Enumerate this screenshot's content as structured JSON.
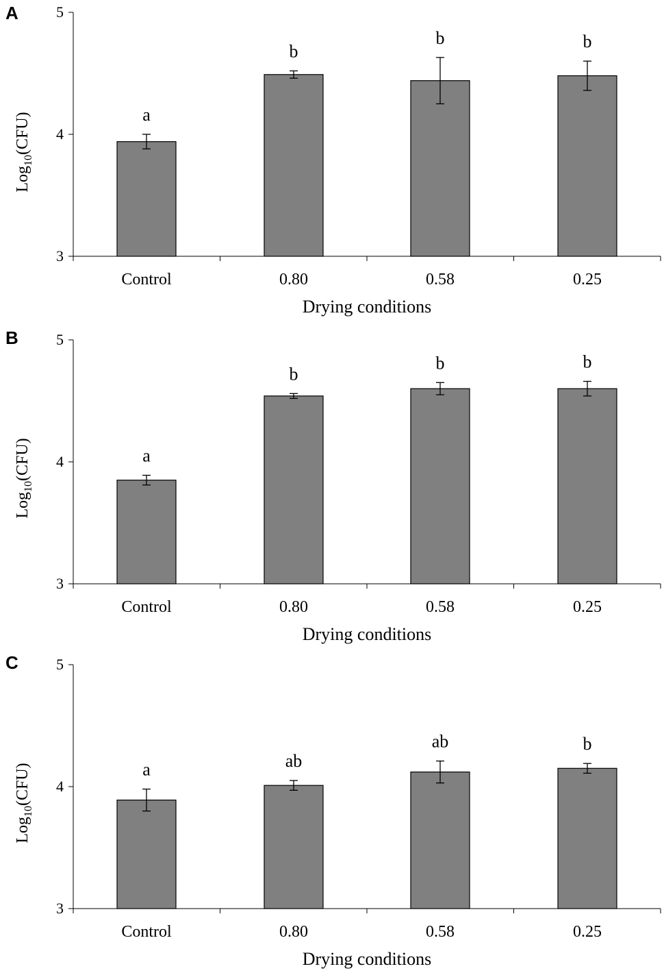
{
  "figure": {
    "x_axis_label": "Drying conditions"
  },
  "chart_data": [
    {
      "type": "bar",
      "panel": "A",
      "title": "",
      "xlabel": "Drying conditions",
      "ylabel": {
        "base": "Log",
        "subscript": "10",
        "rest": "(CFU)"
      },
      "ylim": [
        3,
        5
      ],
      "yticks": [
        "3",
        "4",
        "5"
      ],
      "categories": [
        "Control",
        "0.80",
        "0.58",
        "0.25"
      ],
      "values": [
        3.94,
        4.49,
        4.44,
        4.48
      ],
      "errors": [
        0.06,
        0.03,
        0.19,
        0.12
      ],
      "significance": [
        "a",
        "b",
        "b",
        "b"
      ],
      "bar_color": "#808080"
    },
    {
      "type": "bar",
      "panel": "B",
      "title": "",
      "xlabel": "Drying conditions",
      "ylabel": {
        "base": "Log",
        "subscript": "10",
        "rest": "(CFU)"
      },
      "ylim": [
        3,
        5
      ],
      "yticks": [
        "3",
        "4",
        "5"
      ],
      "categories": [
        "Control",
        "0.80",
        "0.58",
        "0.25"
      ],
      "values": [
        3.85,
        4.54,
        4.6,
        4.6
      ],
      "errors": [
        0.04,
        0.02,
        0.05,
        0.06
      ],
      "significance": [
        "a",
        "b",
        "b",
        "b"
      ],
      "bar_color": "#808080"
    },
    {
      "type": "bar",
      "panel": "C",
      "title": "",
      "xlabel": "Drying conditions",
      "ylabel": {
        "base": "Log",
        "subscript": "10",
        "rest": "(CFU)"
      },
      "ylim": [
        3,
        5
      ],
      "yticks": [
        "3",
        "4",
        "5"
      ],
      "categories": [
        "Control",
        "0.80",
        "0.58",
        "0.25"
      ],
      "values": [
        3.89,
        4.01,
        4.12,
        4.15
      ],
      "errors": [
        0.09,
        0.04,
        0.09,
        0.04
      ],
      "significance": [
        "a",
        "ab",
        "ab",
        "b"
      ],
      "bar_color": "#808080"
    }
  ]
}
